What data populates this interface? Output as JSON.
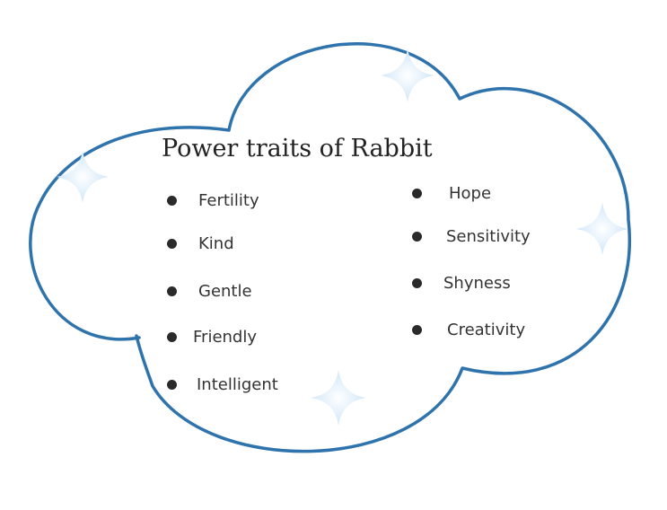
{
  "diagram": {
    "title": "Power traits of Rabbit",
    "left_traits": [
      {
        "label": "Fertility"
      },
      {
        "label": "Kind"
      },
      {
        "label": "Gentle"
      },
      {
        "label": "Friendly"
      },
      {
        "label": "Intelligent"
      }
    ],
    "right_traits": [
      {
        "label": "Hope"
      },
      {
        "label": "Sensitivity"
      },
      {
        "label": "Shyness"
      },
      {
        "label": "Creativity"
      }
    ],
    "colors": {
      "cloud_outline": "#2f73ad",
      "sparkle": "#cfe6f8",
      "bullet": "#2a2a2a",
      "text": "#333333"
    },
    "icons": [
      "cloud-shape",
      "sparkle-icon",
      "bullet-icon"
    ]
  }
}
